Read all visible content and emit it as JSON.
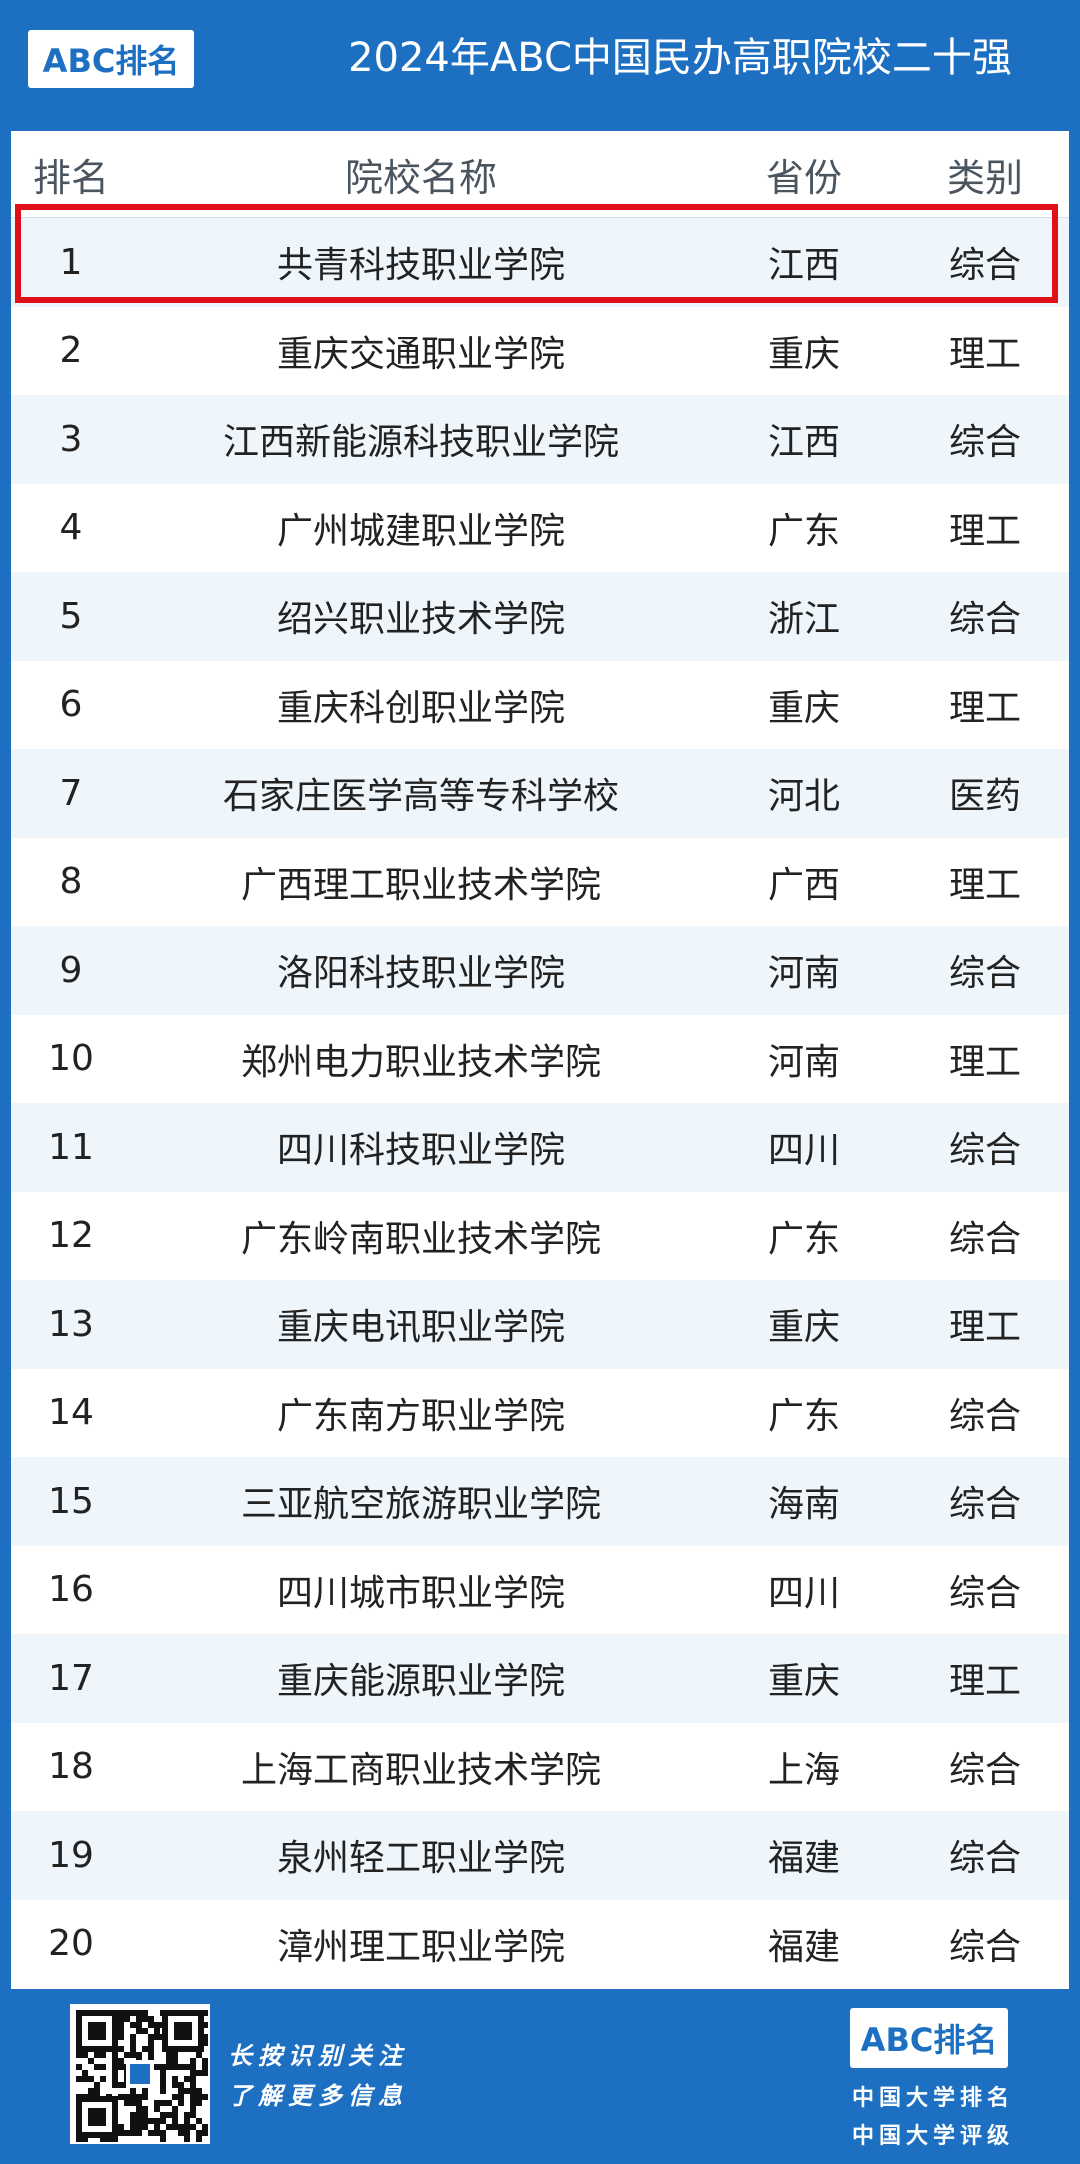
{
  "header": {
    "logo": "ABC排名",
    "title": "2024年ABC中国民办高职院校二十强"
  },
  "table": {
    "columns": [
      "排名",
      "院校名称",
      "省份",
      "类别"
    ],
    "rows": [
      [
        1,
        "共青科技职业学院",
        "江西",
        "综合"
      ],
      [
        2,
        "重庆交通职业学院",
        "重庆",
        "理工"
      ],
      [
        3,
        "江西新能源科技职业学院",
        "江西",
        "综合"
      ],
      [
        4,
        "广州城建职业学院",
        "广东",
        "理工"
      ],
      [
        5,
        "绍兴职业技术学院",
        "浙江",
        "综合"
      ],
      [
        6,
        "重庆科创职业学院",
        "重庆",
        "理工"
      ],
      [
        7,
        "石家庄医学高等专科学校",
        "河北",
        "医药"
      ],
      [
        8,
        "广西理工职业技术学院",
        "广西",
        "理工"
      ],
      [
        9,
        "洛阳科技职业学院",
        "河南",
        "综合"
      ],
      [
        10,
        "郑州电力职业技术学院",
        "河南",
        "理工"
      ],
      [
        11,
        "四川科技职业学院",
        "四川",
        "综合"
      ],
      [
        12,
        "广东岭南职业技术学院",
        "广东",
        "综合"
      ],
      [
        13,
        "重庆电讯职业学院",
        "重庆",
        "理工"
      ],
      [
        14,
        "广东南方职业学院",
        "广东",
        "综合"
      ],
      [
        15,
        "三亚航空旅游职业学院",
        "海南",
        "综合"
      ],
      [
        16,
        "四川城市职业学院",
        "四川",
        "综合"
      ],
      [
        17,
        "重庆能源职业学院",
        "重庆",
        "理工"
      ],
      [
        18,
        "上海工商职业技术学院",
        "上海",
        "综合"
      ],
      [
        19,
        "泉州轻工职业学院",
        "福建",
        "综合"
      ],
      [
        20,
        "漳州理工职业学院",
        "福建",
        "综合"
      ]
    ]
  },
  "footer": {
    "qr_lines": [
      "长按识别关注",
      "了解更多信息"
    ],
    "logo": "ABC排名",
    "lines": [
      "中国大学排名",
      "中国大学评级"
    ]
  }
}
